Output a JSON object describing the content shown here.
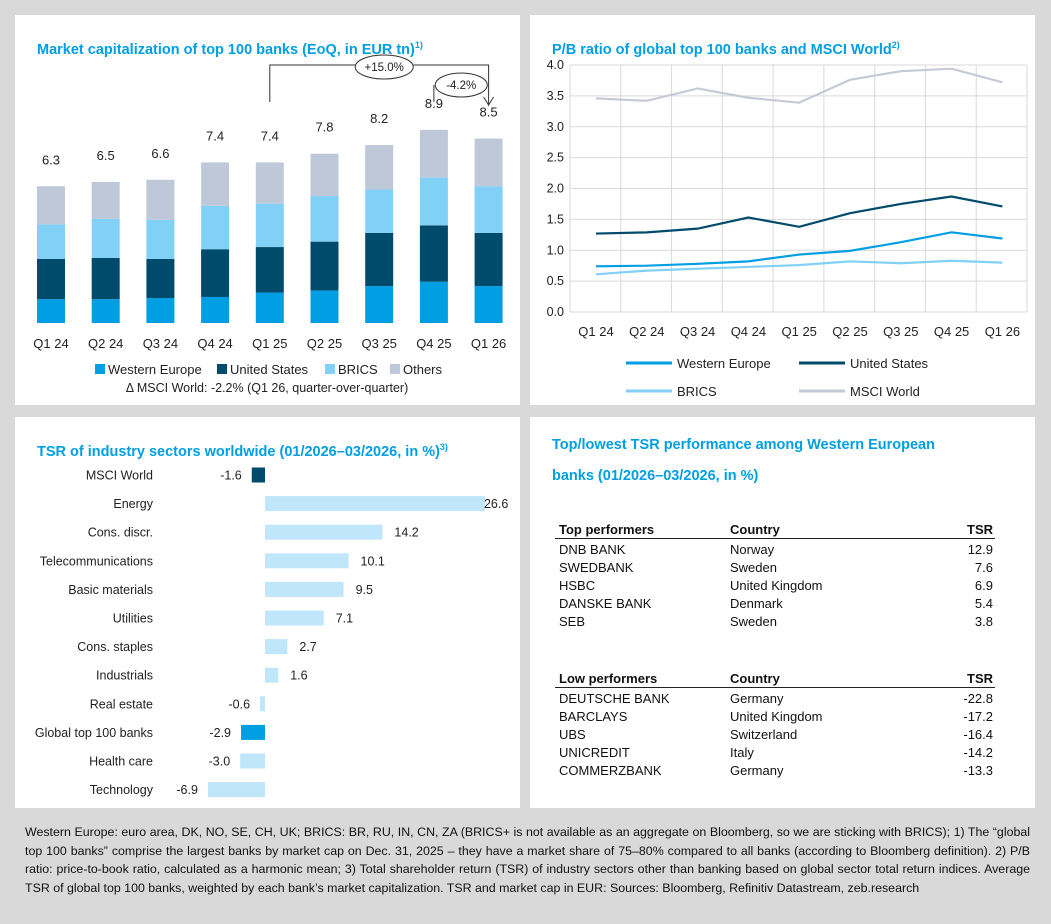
{
  "panels": {
    "market_cap_title": "Market capitalization of top 100 banks (EoQ, in EUR tn)",
    "market_cap_sup": "1)",
    "pb_title": "P/B ratio of global top 100 banks and MSCI World",
    "pb_sup": "2)",
    "tsr_title": "TSR of industry sectors worldwide (01/2026–03/2026, in %)",
    "tsr_sup": "3)",
    "table_title_1": "Top/lowest TSR performance among Western European",
    "table_title_2": "banks (01/2026–03/2026, in %)"
  },
  "chart_data": [
    {
      "type": "bar",
      "stacked": true,
      "title": "Market capitalization of top 100 banks (EoQ, in EUR tn)",
      "categories": [
        "Q1 24",
        "Q2 24",
        "Q3 24",
        "Q4 24",
        "Q1 25",
        "Q2 25",
        "Q3 25",
        "Q4 25",
        "Q1 26"
      ],
      "totals": [
        "6.3",
        "6.5",
        "6.6",
        "7.4",
        "7.4",
        "7.8",
        "8.2",
        "8.9",
        "8.5"
      ],
      "series": [
        {
          "name": "Western Europe",
          "color": "#009fe3",
          "values": [
            1.1,
            1.1,
            1.15,
            1.2,
            1.4,
            1.5,
            1.7,
            1.9,
            1.7
          ]
        },
        {
          "name": "United States",
          "color": "#004b6b",
          "values": [
            1.85,
            1.9,
            1.8,
            2.2,
            2.1,
            2.25,
            2.45,
            2.6,
            2.45
          ]
        },
        {
          "name": "BRICS",
          "color": "#80d1f5",
          "values": [
            1.6,
            1.8,
            1.8,
            2.0,
            2.0,
            2.1,
            2.0,
            2.2,
            2.15
          ]
        },
        {
          "name": "Others",
          "color": "#bec8d8",
          "values": [
            1.75,
            1.7,
            1.85,
            2.0,
            1.9,
            1.95,
            2.05,
            2.2,
            2.2
          ]
        }
      ],
      "annotations": [
        "+15.0%",
        "-4.2%"
      ],
      "note": "Δ MSCI World: -2.2% (Q1 26, quarter-over-quarter)",
      "ylim": [
        0,
        10
      ]
    },
    {
      "type": "line",
      "title": "P/B ratio of global top 100 banks and MSCI World",
      "categories": [
        "Q1 24",
        "Q2 24",
        "Q3 24",
        "Q4 24",
        "Q1 25",
        "Q2 25",
        "Q3 25",
        "Q4 25",
        "Q1 26"
      ],
      "yticks": [
        "0.0",
        "0.5",
        "1.0",
        "1.5",
        "2.0",
        "2.5",
        "3.0",
        "3.5",
        "4.0"
      ],
      "ylim": [
        0,
        4
      ],
      "grid": true,
      "series": [
        {
          "name": "Western Europe",
          "color": "#009fe3",
          "values": [
            0.74,
            0.75,
            0.78,
            0.82,
            0.93,
            0.99,
            1.13,
            1.29,
            1.19
          ]
        },
        {
          "name": "United States",
          "color": "#004b6b",
          "values": [
            1.27,
            1.29,
            1.35,
            1.53,
            1.38,
            1.6,
            1.75,
            1.87,
            1.71
          ]
        },
        {
          "name": "BRICS",
          "color": "#80d1f5",
          "values": [
            0.61,
            0.67,
            0.7,
            0.73,
            0.76,
            0.82,
            0.79,
            0.83,
            0.8
          ]
        },
        {
          "name": "MSCI World",
          "color": "#c4cad6",
          "values": [
            3.46,
            3.42,
            3.62,
            3.47,
            3.39,
            3.76,
            3.9,
            3.94,
            3.72
          ]
        }
      ]
    },
    {
      "type": "bar",
      "orientation": "horizontal",
      "title": "TSR of industry sectors worldwide (01/2026–03/2026, in %)",
      "categories": [
        "MSCI World",
        "Energy",
        "Cons. discr.",
        "Telecommunications",
        "Basic materials",
        "Utilities",
        "Cons. staples",
        "Industrials",
        "Real estate",
        "Global top 100 banks",
        "Health care",
        "Technology"
      ],
      "values": [
        -1.6,
        26.6,
        14.2,
        10.1,
        9.5,
        7.1,
        2.7,
        1.6,
        -0.6,
        -2.9,
        -3.0,
        -6.9
      ],
      "labels": [
        "-1.6",
        "26.6",
        "14.2",
        "10.1",
        "9.5",
        "7.1",
        "2.7",
        "1.6",
        "-0.6",
        "-2.9",
        "-3.0",
        "-6.9"
      ],
      "colors": [
        "#004b6b",
        "#bfe6fa",
        "#bfe6fa",
        "#bfe6fa",
        "#bfe6fa",
        "#bfe6fa",
        "#bfe6fa",
        "#bfe6fa",
        "#bfe6fa",
        "#009fe3",
        "#bfe6fa",
        "#bfe6fa"
      ]
    }
  ],
  "tables": {
    "headers": {
      "top": "Top performers",
      "low": "Low performers",
      "country": "Country",
      "tsr": "TSR"
    },
    "top": [
      {
        "bank": "DNB BANK",
        "country": "Norway",
        "tsr": "12.9"
      },
      {
        "bank": "SWEDBANK",
        "country": "Sweden",
        "tsr": "7.6"
      },
      {
        "bank": "HSBC",
        "country": "United Kingdom",
        "tsr": "6.9"
      },
      {
        "bank": "DANSKE BANK",
        "country": "Denmark",
        "tsr": "5.4"
      },
      {
        "bank": "SEB",
        "country": "Sweden",
        "tsr": "3.8"
      }
    ],
    "low": [
      {
        "bank": "DEUTSCHE BANK",
        "country": "Germany",
        "tsr": "-22.8"
      },
      {
        "bank": "BARCLAYS",
        "country": "United Kingdom",
        "tsr": "-17.2"
      },
      {
        "bank": "UBS",
        "country": "Switzerland",
        "tsr": "-16.4"
      },
      {
        "bank": "UNICREDIT",
        "country": "Italy",
        "tsr": "-14.2"
      },
      {
        "bank": "COMMERZBANK",
        "country": "Germany",
        "tsr": "-13.3"
      }
    ]
  },
  "footnote": "Western Europe: euro area, DK, NO, SE, CH, UK; BRICS: BR, RU, IN, CN, ZA (BRICS+ is not available as an aggregate on Bloomberg, so we are sticking with BRICS); 1) The “global top 100 banks” comprise the largest banks by market cap on Dec. 31, 2025 – they have a market share of 75–80% compared to all banks (according to Bloomberg definition). 2) P/B ratio: price-to-book ratio, calculated as a harmonic mean; 3) Total shareholder return (TSR) of industry sectors other than banking based on global sector total return indices. Average TSR of global top 100 banks, weighted by each bank’s market capitalization. TSR and market cap in EUR: Sources: Bloomberg, Refinitiv Datastream, zeb.research"
}
